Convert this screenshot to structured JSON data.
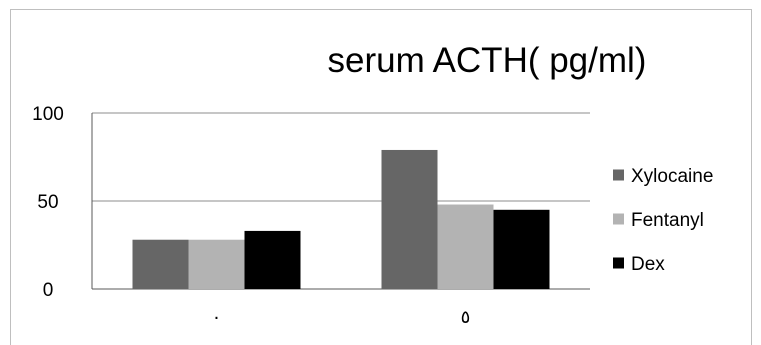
{
  "chart_data": {
    "type": "bar",
    "title": "serum ACTH( pg/ml)",
    "xlabel": "",
    "ylabel": "",
    "categories": [
      "٠",
      "٥"
    ],
    "series": [
      {
        "name": "Xylocaine",
        "values": [
          28,
          79
        ],
        "color": "#666666"
      },
      {
        "name": "Fentanyl",
        "values": [
          28,
          48
        ],
        "color": "#b3b3b3"
      },
      {
        "name": "Dex",
        "values": [
          33,
          45
        ],
        "color": "#000000"
      }
    ],
    "ylim": [
      0,
      100
    ],
    "yticks": [
      "0",
      "50",
      "100"
    ],
    "grid": true,
    "legend_position": "right"
  }
}
